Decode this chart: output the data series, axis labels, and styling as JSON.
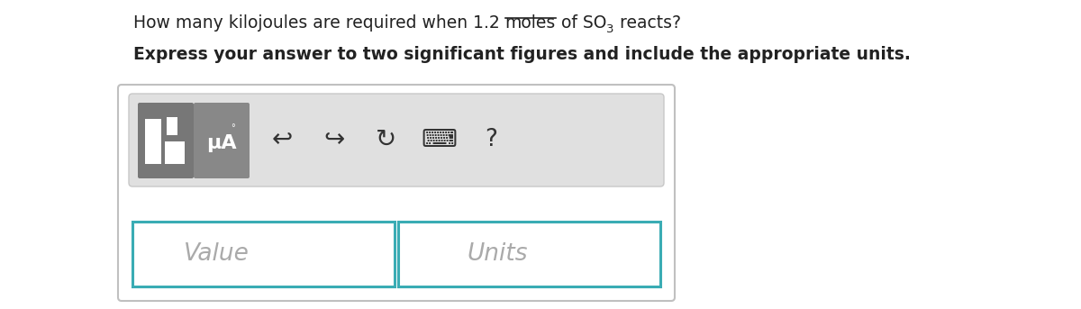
{
  "bg_color": "#ffffff",
  "text_color": "#222222",
  "placeholder_color": "#aaaaaa",
  "toolbar_bg": "#e0e0e0",
  "toolbar_border": "#c8c8c8",
  "outer_box_border": "#c0c0c0",
  "input_border": "#3aacb4",
  "btn_dark": "#777777",
  "btn_mid": "#888888",
  "icon_color": "#333333",
  "line1_full": "How many kilojoules are required when 1.2 moles of SO",
  "line1_pre_moles": "How many kilojoules are required when 1.2 ",
  "line1_moles": "moles",
  "line1_mid": " of SO",
  "line1_sub": "3",
  "line1_end": " reacts?",
  "line2": "Express your answer to two significant figures and include the appropriate units.",
  "mu_A_label": "μA",
  "value_label": "Value",
  "units_label": "Units",
  "question_mark": "?"
}
